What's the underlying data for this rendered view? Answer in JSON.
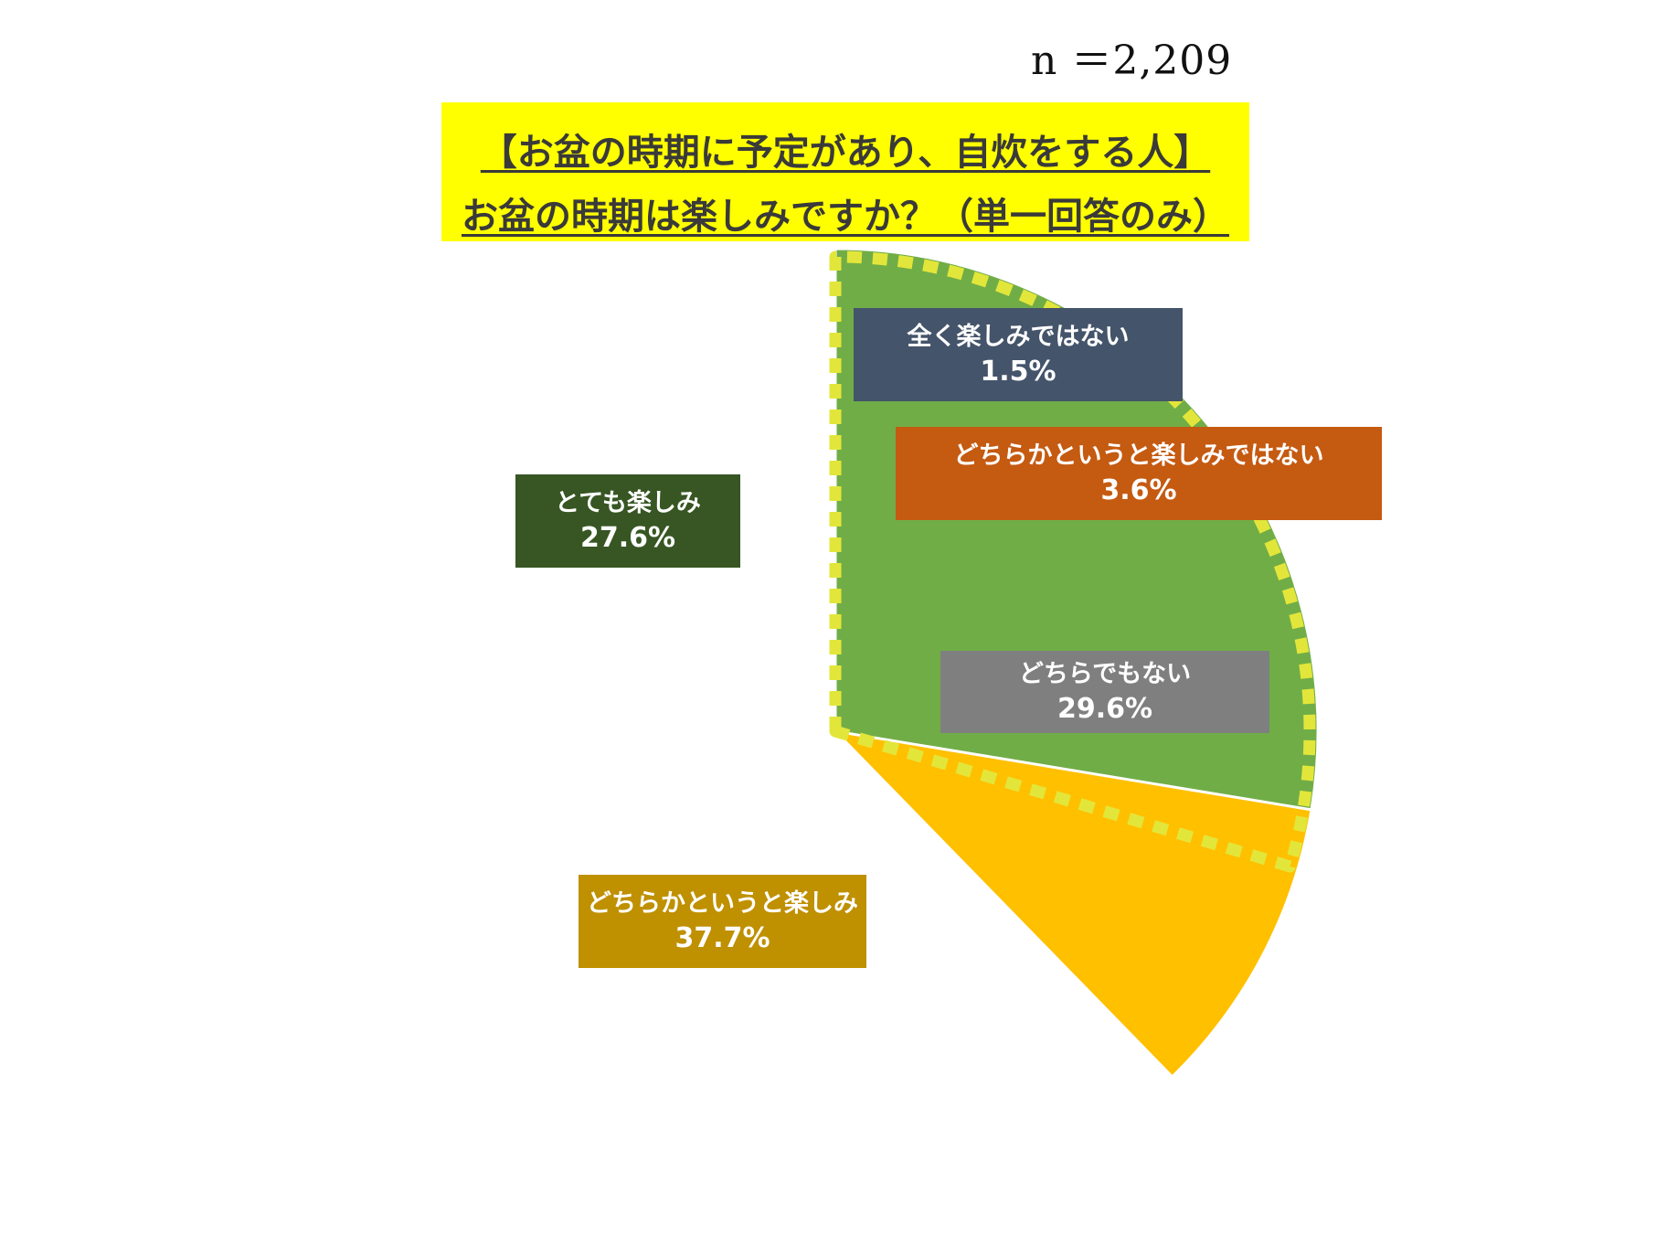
{
  "sample_size": "n ＝2,209",
  "title": {
    "line1": "【お盆の時期に予定があり、自炊をする人】",
    "line2": "お盆の時期は楽しみですか？（単一回答のみ）"
  },
  "colors": {
    "title_background": "#ffff00",
    "highlight_dots": "#e3e63a"
  },
  "chart_data": {
    "type": "pie",
    "start": "12 o'clock",
    "direction": "clockwise",
    "slices": [
      {
        "label": "全く楽しみではない",
        "value": 1.5,
        "value_label": "1.5%",
        "color": "#5b9bd5",
        "label_bg": "#44546a"
      },
      {
        "label": "どちらかというと楽しみではない",
        "value": 3.6,
        "value_label": "3.6%",
        "color": "#ed7d31",
        "label_bg": "#c55a11"
      },
      {
        "label": "どちらでもない",
        "value": 29.6,
        "value_label": "29.6%",
        "color": "#a5a5a5",
        "label_bg": "#7f7f7f"
      },
      {
        "label": "どちらかというと楽しみ",
        "value": 37.7,
        "value_label": "37.7%",
        "color": "#ffc000",
        "label_bg": "#bf9000"
      },
      {
        "label": "とても楽しみ",
        "value": 27.6,
        "value_label": "27.6%",
        "color": "#70ad47",
        "label_bg": "#375623"
      }
    ],
    "highlighted_slices": [
      0,
      1,
      2
    ]
  }
}
